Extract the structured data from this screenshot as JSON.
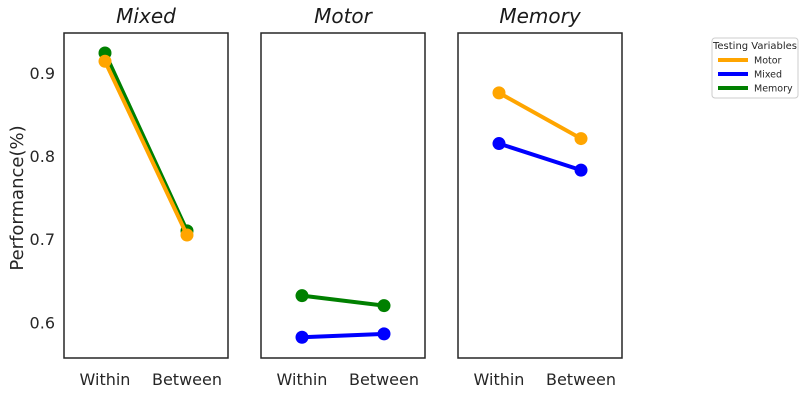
{
  "chart_data": {
    "type": "line",
    "ylabel": "Performance(%)",
    "ylim": [
      0.557,
      0.948
    ],
    "yticks": [
      0.6,
      0.7,
      0.8,
      0.9
    ],
    "categories": [
      "Within",
      "Between"
    ],
    "legend": {
      "title": "Testing Variables",
      "position": "right",
      "entries": [
        {
          "name": "Motor",
          "color": "#ffa500"
        },
        {
          "name": "Mixed",
          "color": "#0000ff"
        },
        {
          "name": "Memory",
          "color": "#008000"
        }
      ]
    },
    "panels": [
      {
        "title": "Mixed",
        "series": [
          {
            "name": "Memory",
            "color": "#008000",
            "values": [
              0.924,
              0.71
            ]
          },
          {
            "name": "Motor",
            "color": "#ffa500",
            "values": [
              0.914,
              0.705
            ]
          }
        ]
      },
      {
        "title": "Motor",
        "series": [
          {
            "name": "Memory",
            "color": "#008000",
            "values": [
              0.632,
              0.62
            ]
          },
          {
            "name": "Mixed",
            "color": "#0000ff",
            "values": [
              0.582,
              0.586
            ]
          }
        ]
      },
      {
        "title": "Memory",
        "series": [
          {
            "name": "Motor",
            "color": "#ffa500",
            "values": [
              0.876,
              0.821
            ]
          },
          {
            "name": "Mixed",
            "color": "#0000ff",
            "values": [
              0.815,
              0.783
            ]
          }
        ]
      }
    ]
  }
}
